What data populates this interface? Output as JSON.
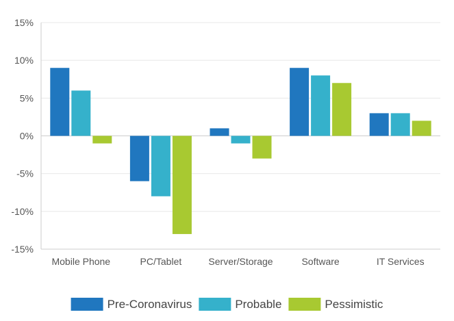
{
  "chart_data": {
    "type": "bar",
    "categories": [
      "Mobile Phone",
      "PC/Tablet",
      "Server/Storage",
      "Software",
      "IT Services"
    ],
    "series": [
      {
        "name": "Pre-Coronavirus",
        "color": "#2077bf",
        "values": [
          9,
          -6,
          1,
          9,
          3
        ]
      },
      {
        "name": "Probable",
        "color": "#35b1cb",
        "values": [
          6,
          -8,
          -1,
          8,
          3
        ]
      },
      {
        "name": "Pessimistic",
        "color": "#a8c931",
        "values": [
          -1,
          -13,
          -3,
          7,
          2
        ]
      }
    ],
    "ylim": [
      -15,
      15
    ],
    "yticks": [
      15,
      10,
      5,
      0,
      -5,
      -10,
      -15
    ],
    "ytick_labels": [
      "15%",
      "10%",
      "5%",
      "0%",
      "-5%",
      "-10%",
      "-15%"
    ],
    "grid": true,
    "legend_position": "bottom-center",
    "title": "",
    "xlabel": "",
    "ylabel": ""
  }
}
